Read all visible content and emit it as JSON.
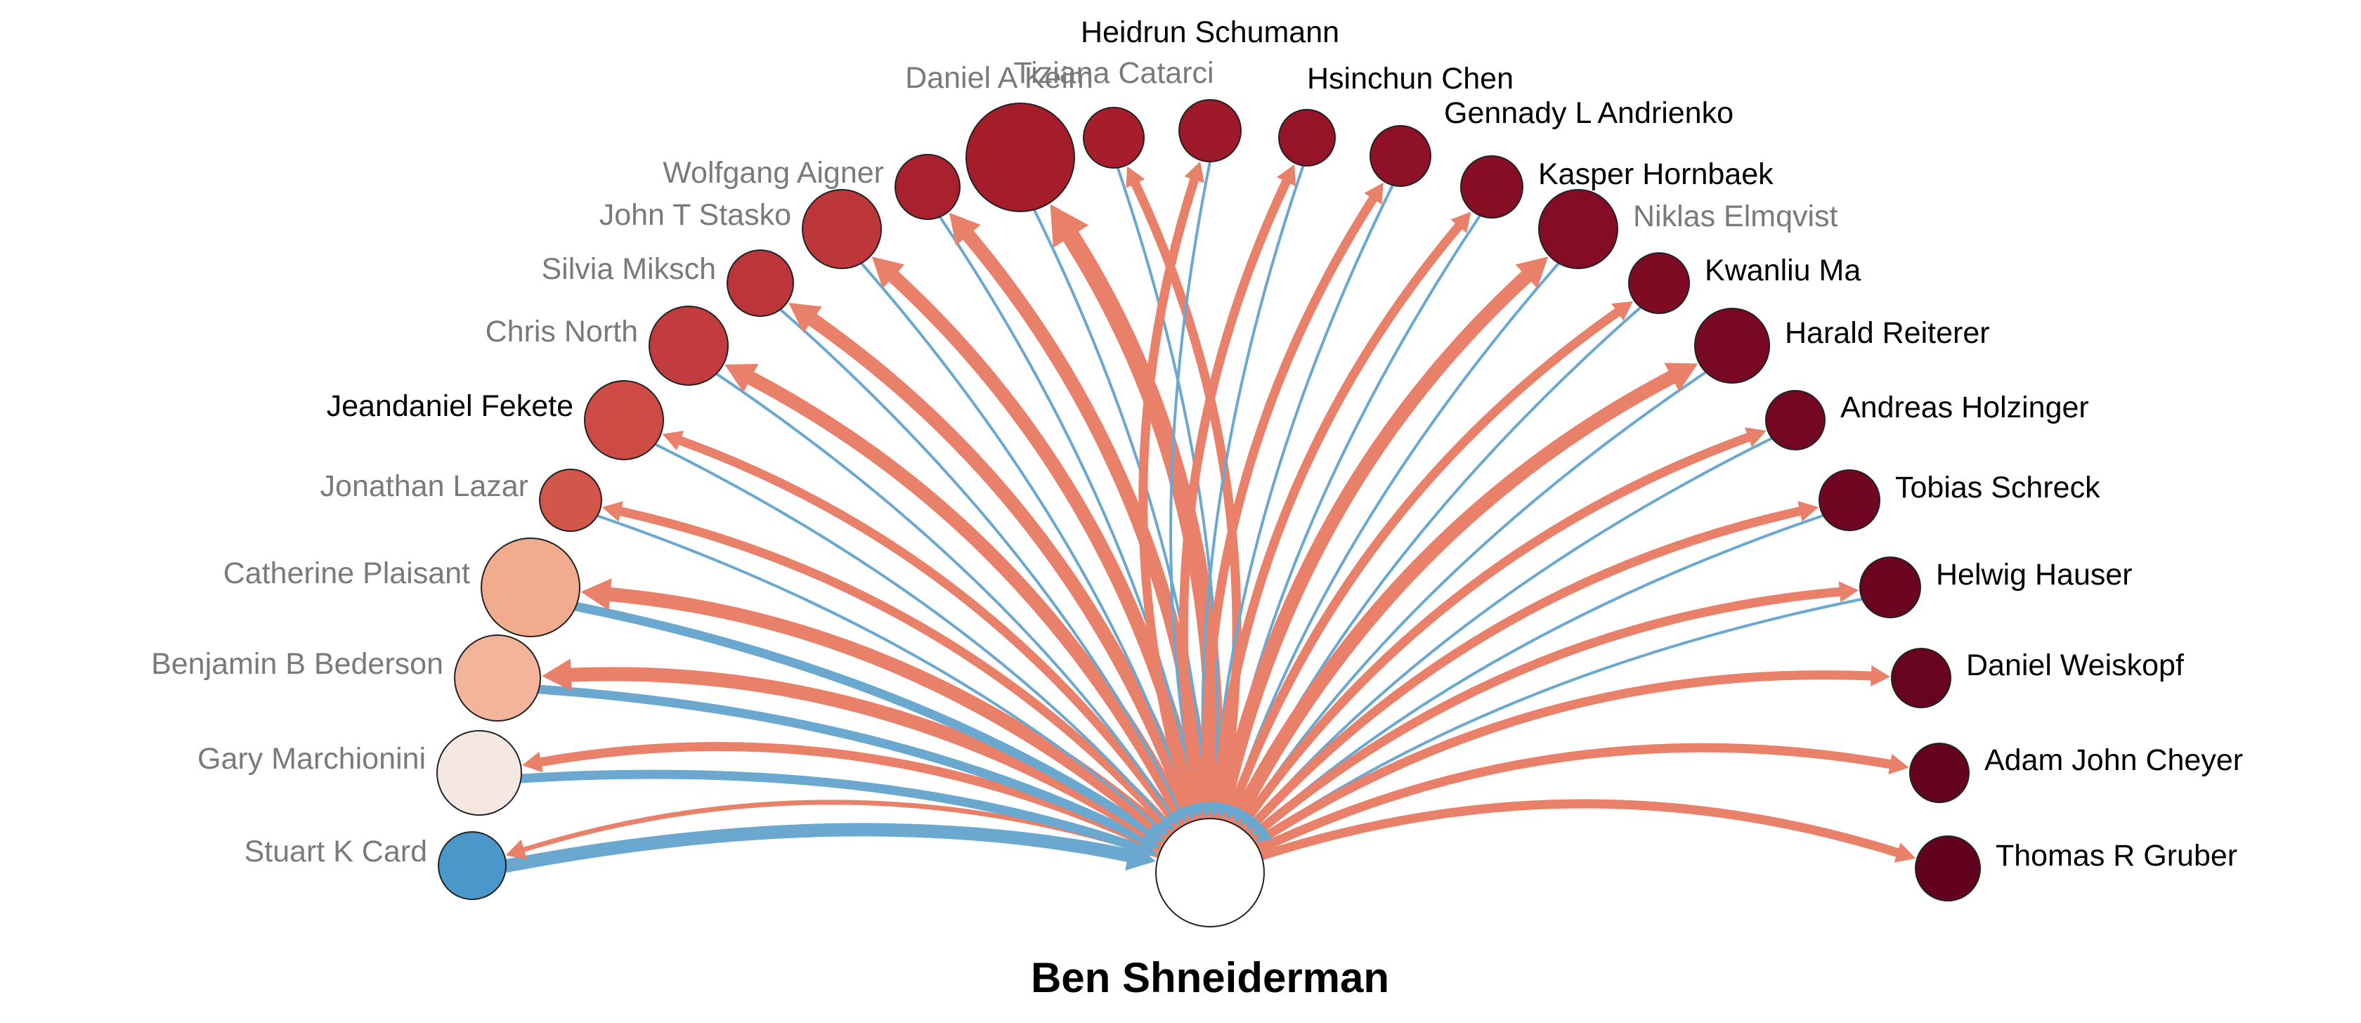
{
  "center": {
    "name": "Ben Shneiderman",
    "fill": "#ffffff"
  },
  "colors": {
    "outgoing": "#e8806a",
    "incoming": "#6aa8d0",
    "label_dark": "#000000",
    "label_muted": "#7a7a7a"
  },
  "nodes": [
    {
      "name": "Stuart K Card",
      "fill": "#4a97c9",
      "muted": true,
      "out": 1,
      "in": 4
    },
    {
      "name": "Gary Marchionini",
      "fill": "#f5e7e1",
      "muted": true,
      "out": 2,
      "in": 3
    },
    {
      "name": "Benjamin B Bederson",
      "fill": "#f2b49a",
      "muted": true,
      "out": 3,
      "in": 3
    },
    {
      "name": "Catherine Plaisant",
      "fill": "#f1ac8e",
      "muted": true,
      "out": 3,
      "in": 3
    },
    {
      "name": "Jonathan Lazar",
      "fill": "#d2564a",
      "muted": true,
      "out": 2,
      "in": 1
    },
    {
      "name": "Jeandaniel Fekete",
      "fill": "#cd4b44",
      "muted": false,
      "out": 2,
      "in": 1
    },
    {
      "name": "Chris North",
      "fill": "#c23b3e",
      "muted": true,
      "out": 3,
      "in": 1
    },
    {
      "name": "Silvia Miksch",
      "fill": "#bb353a",
      "muted": true,
      "out": 3,
      "in": 1
    },
    {
      "name": "John T Stasko",
      "fill": "#bd3639",
      "muted": true,
      "out": 3,
      "in": 1
    },
    {
      "name": "Wolfgang Aigner",
      "fill": "#a9202e",
      "muted": true,
      "out": 3,
      "in": 1
    },
    {
      "name": "Daniel A Keim",
      "fill": "#a51d2b",
      "muted": true,
      "out": 4,
      "in": 1
    },
    {
      "name": "Tiziana Catarci",
      "fill": "#a81d2c",
      "muted": true,
      "out": 2,
      "in": 1
    },
    {
      "name": "Heidrun Schumann",
      "fill": "#9e1a2a",
      "muted": false,
      "out": 2,
      "in": 1
    },
    {
      "name": "Hsinchun Chen",
      "fill": "#961428",
      "muted": false,
      "out": 2,
      "in": 1
    },
    {
      "name": "Gennady L Andrienko",
      "fill": "#8e1127",
      "muted": false,
      "out": 2,
      "in": 1
    },
    {
      "name": "Kasper Hornbaek",
      "fill": "#880e26",
      "muted": false,
      "out": 2,
      "in": 1
    },
    {
      "name": "Niklas Elmqvist",
      "fill": "#840c25",
      "muted": true,
      "out": 3,
      "in": 1
    },
    {
      "name": "Kwanliu Ma",
      "fill": "#7e0a24",
      "muted": false,
      "out": 2,
      "in": 1
    },
    {
      "name": "Harald Reiterer",
      "fill": "#780823",
      "muted": false,
      "out": 3,
      "in": 1
    },
    {
      "name": "Andreas Holzinger",
      "fill": "#740722",
      "muted": false,
      "out": 2,
      "in": 1
    },
    {
      "name": "Tobias Schreck",
      "fill": "#700621",
      "muted": false,
      "out": 2,
      "in": 1
    },
    {
      "name": "Helwig Hauser",
      "fill": "#6c0520",
      "muted": false,
      "out": 2,
      "in": 1
    },
    {
      "name": "Daniel Weiskopf",
      "fill": "#690420",
      "muted": false,
      "out": 2,
      "in": 0
    },
    {
      "name": "Adam John Cheyer",
      "fill": "#66031f",
      "muted": false,
      "out": 2,
      "in": 0
    },
    {
      "name": "Thomas R Gruber",
      "fill": "#63021f",
      "muted": false,
      "out": 2,
      "in": 0
    }
  ]
}
